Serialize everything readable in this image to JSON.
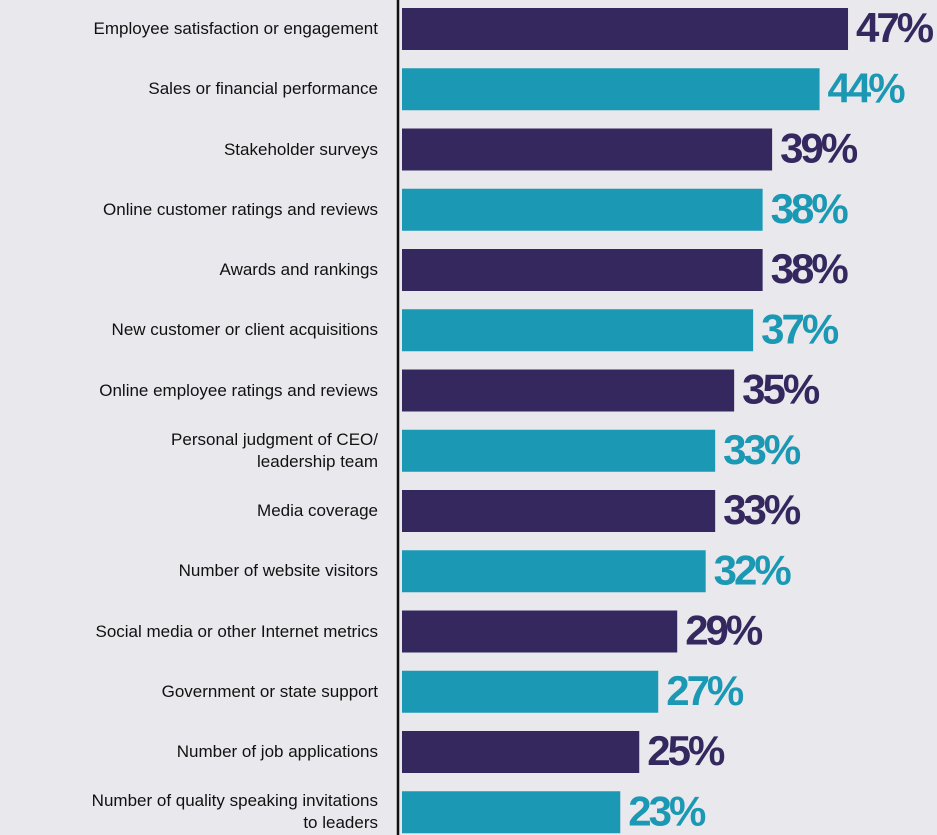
{
  "chart_data": {
    "type": "bar",
    "orientation": "horizontal",
    "categories": [
      "Employee satisfaction or engagement",
      "Sales or financial performance",
      "Stakeholder surveys",
      "Online customer ratings and reviews",
      "Awards and rankings",
      "New customer or client acquisitions",
      "Online employee ratings and reviews",
      "Personal judgment of CEO/\nleadership team",
      "Media coverage",
      "Number of website visitors",
      "Social media or other Internet metrics",
      "Government or state support",
      "Number of job applications",
      "Number of quality speaking invitations\nto leaders"
    ],
    "values": [
      47,
      44,
      39,
      38,
      38,
      37,
      35,
      33,
      33,
      32,
      29,
      27,
      25,
      23
    ],
    "value_labels": [
      "47%",
      "44%",
      "39%",
      "38%",
      "38%",
      "37%",
      "35%",
      "33%",
      "33%",
      "32%",
      "29%",
      "27%",
      "25%",
      "23%"
    ],
    "colors": [
      "#35285f",
      "#1a98b4"
    ]
  }
}
